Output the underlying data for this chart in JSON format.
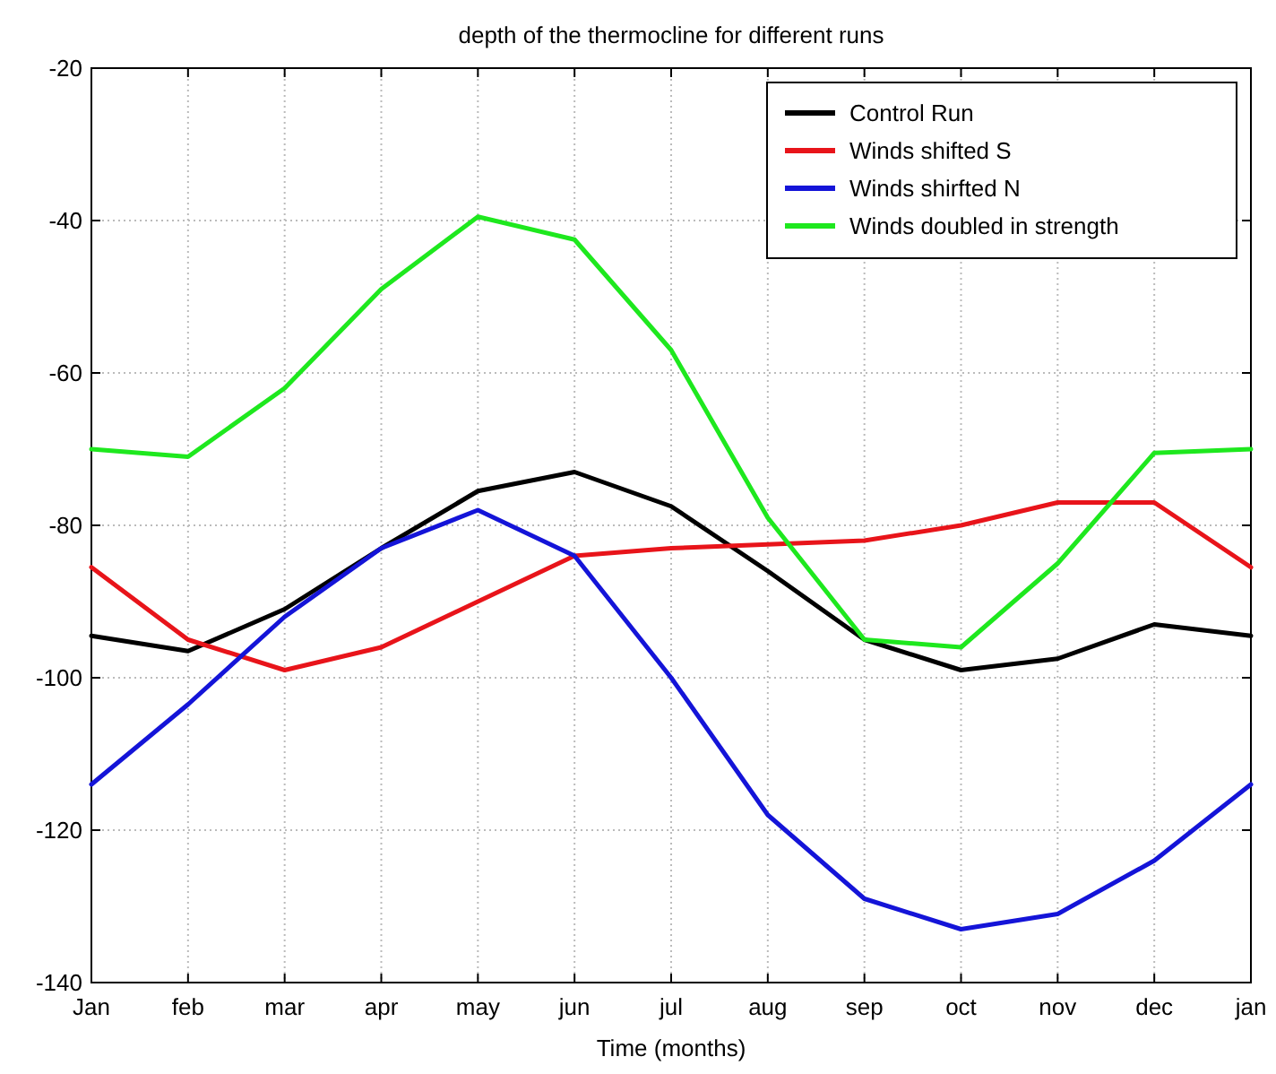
{
  "chart_data": {
    "type": "line",
    "title": "depth of the thermocline for different runs",
    "xlabel": "Time (months)",
    "categories": [
      "Jan",
      "feb",
      "mar",
      "apr",
      "may",
      "jun",
      "jul",
      "aug",
      "sep",
      "oct",
      "nov",
      "dec",
      "jan"
    ],
    "series": [
      {
        "name": "Control Run",
        "color": "#000000",
        "values": [
          -94.5,
          -96.5,
          -91,
          -83,
          -75.5,
          -73,
          -77.5,
          -86,
          -95,
          -99,
          -97.5,
          -93,
          -94.5
        ]
      },
      {
        "name": "Winds shifted S",
        "color": "#e8141a",
        "values": [
          -85.5,
          -95,
          -99,
          -96,
          -90,
          -84,
          -83,
          -82.5,
          -82,
          -80,
          -77,
          -77,
          -85.5
        ]
      },
      {
        "name": "Winds shirfted N",
        "color": "#1414d8",
        "values": [
          -114,
          -103.5,
          -92,
          -83,
          -78,
          -84,
          -100,
          -118,
          -129,
          -133,
          -131,
          -124,
          -114
        ]
      },
      {
        "name": "Winds doubled in strength",
        "color": "#1ee81e",
        "values": [
          -70,
          -71,
          -62,
          -49,
          -39.5,
          -42.5,
          -57,
          -79,
          -95,
          -96,
          -85,
          -70.5,
          -70
        ]
      }
    ],
    "ylim": [
      -140,
      -20
    ],
    "yticks": [
      -140,
      -120,
      -100,
      -80,
      -60,
      -40,
      -20
    ],
    "grid": true,
    "legend": "top right",
    "marker": "none",
    "line_style": "solid"
  }
}
